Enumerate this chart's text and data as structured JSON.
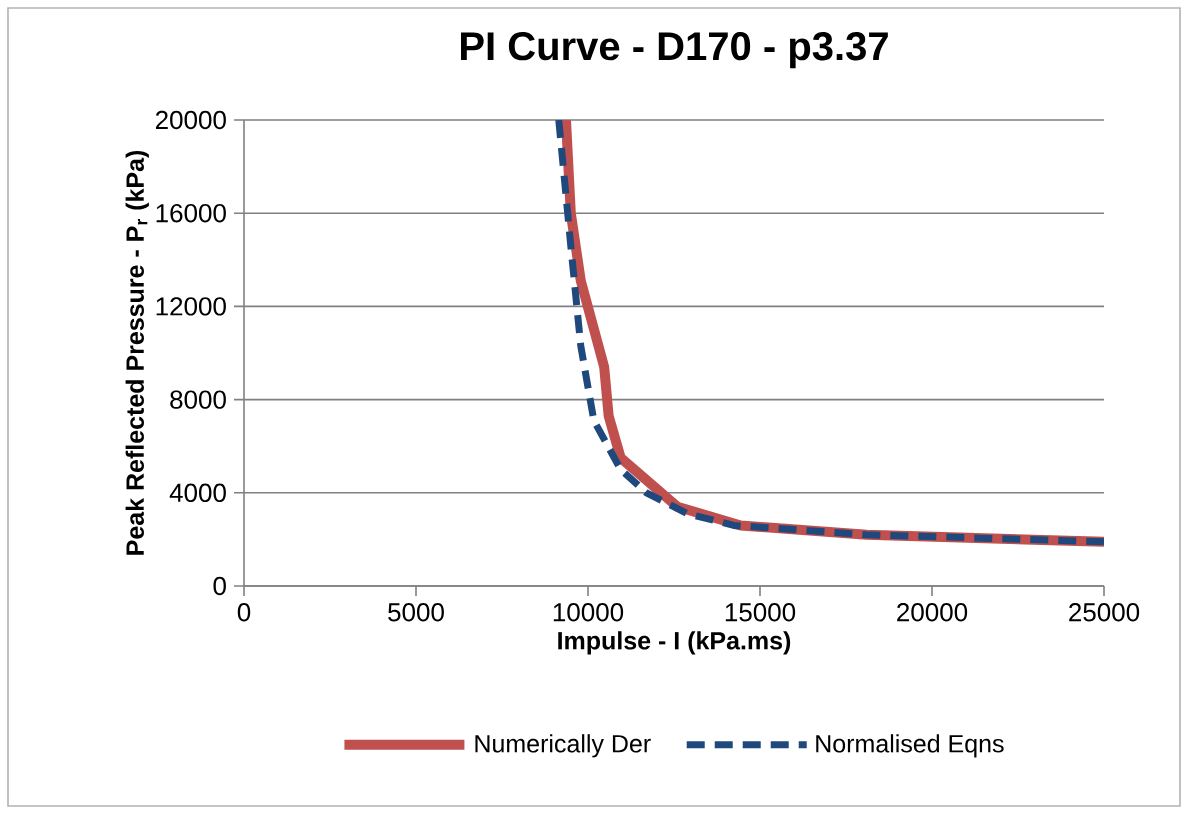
{
  "chart_data": {
    "type": "line",
    "title": "PI Curve - D170 - p3.37",
    "xlabel": "Impulse - I (kPa.ms)",
    "ylabel": "Peak Reflected Pressure - P$_{r}$ (kPa)",
    "xlim": [
      0,
      25000
    ],
    "ylim": [
      0,
      20000
    ],
    "xticks": [
      0,
      5000,
      10000,
      15000,
      20000,
      25000
    ],
    "yticks": [
      0,
      4000,
      8000,
      12000,
      16000,
      20000
    ],
    "grid": "y",
    "legend": "bottom",
    "series": [
      {
        "name": "Numerically Der",
        "color": "#c0504d",
        "line_style": "solid",
        "x": [
          9360,
          9500,
          9790,
          10470,
          10600,
          10950,
          12600,
          14440,
          18100,
          25000
        ],
        "values": [
          20000,
          16000,
          13100,
          9400,
          7300,
          5500,
          3400,
          2600,
          2200,
          1900
        ]
      },
      {
        "name": "Normalised Eqns",
        "color": "#1f497d",
        "line_style": "dashed",
        "x": [
          9150,
          9500,
          9790,
          10170,
          10950,
          11700,
          12900,
          14240,
          18100,
          25000
        ],
        "values": [
          20000,
          14600,
          10300,
          7100,
          5000,
          4000,
          3100,
          2600,
          2200,
          1900
        ]
      }
    ]
  }
}
